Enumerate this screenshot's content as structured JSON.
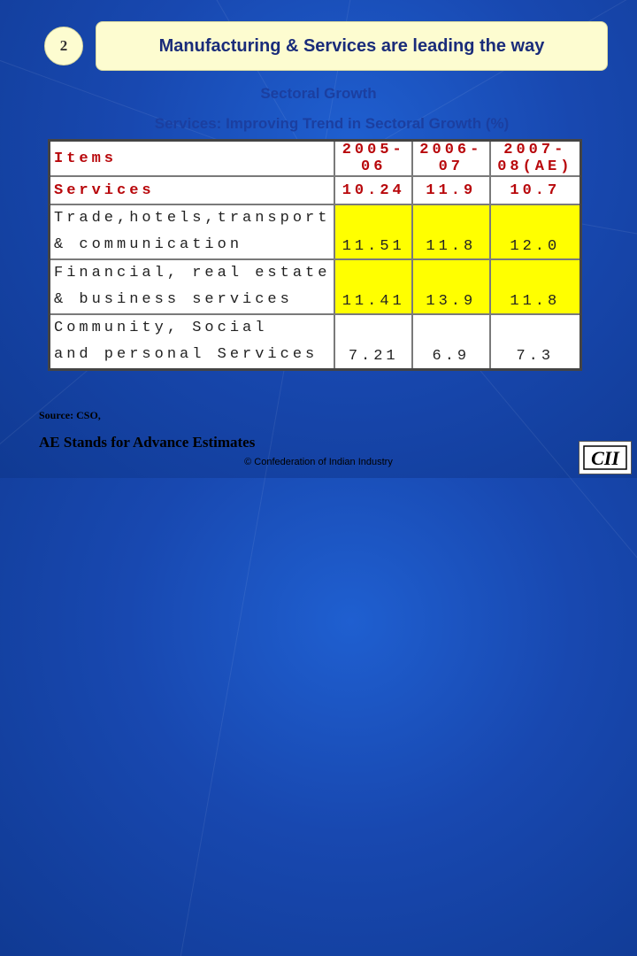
{
  "slide_number": "2",
  "title": "Manufacturing & Services are leading the way",
  "subtitle": "Sectoral Growth",
  "table_caption": "Services: Improving Trend in Sectoral Growth (%)",
  "table": {
    "headers": [
      "Items",
      "2005-06",
      "2006-07",
      "2007-08(AE)"
    ],
    "services_row": [
      "Services",
      "10.24",
      "11.9",
      "10.7"
    ],
    "rows": [
      {
        "line1": "Trade,hotels,transport",
        "line2": "& communication",
        "values": [
          "11.51",
          "11.8",
          "12.0"
        ]
      },
      {
        "line1": "Financial, real estate",
        "line2": "& business services",
        "values": [
          "11.41",
          "13.9",
          "11.8"
        ]
      },
      {
        "line1": "Community, Social",
        "line2": "and personal Services",
        "values": [
          "7.21",
          "6.9",
          "7.3"
        ]
      }
    ]
  },
  "source": "Source: CSO,",
  "note": "AE Stands for Advance Estimates",
  "copyright": "© Confederation of Indian Industry",
  "logo_text": "CII"
}
